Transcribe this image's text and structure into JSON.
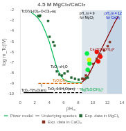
{
  "chart_data": {
    "type": "scatter",
    "title": "4.5 M MgCl₂/CaCl₂",
    "x_label": "pHₘ",
    "y_label": "log m_Tc(IV)",
    "xlim": [
      0,
      14
    ],
    "ylim": [
      -10,
      -2
    ],
    "xticks": [
      0,
      2,
      4,
      6,
      8,
      10,
      12,
      14
    ],
    "yticks": [
      -10,
      -9,
      -8,
      -7,
      -6,
      -5,
      -4,
      -3,
      -2
    ],
    "grid": false,
    "legend": "bottom",
    "spans": [
      {
        "x": [
          8.5,
          12.0
        ],
        "color": "#b8ccd8"
      },
      {
        "x": [
          12.0,
          14.0
        ],
        "color": "#8aabcc"
      }
    ],
    "series": [
      {
        "name": "Pitzer model",
        "type": "line",
        "color": "#00bb55",
        "line_style": "solid",
        "x": [
          1.5,
          2.0,
          2.5,
          3.0,
          3.5,
          4.0,
          4.5,
          5.0,
          5.5,
          6.0,
          6.5,
          7.0,
          7.5,
          8.0,
          8.5
        ],
        "values": [
          -2.2,
          -2.45,
          -2.8,
          -3.3,
          -4.1,
          -5.0,
          -6.2,
          -7.4,
          -8.2,
          -8.65,
          -8.8,
          -8.85,
          -8.88,
          -8.9,
          -8.9
        ]
      },
      {
        "type": "line",
        "color": "#880000",
        "line_style": "solid",
        "x": [
          8.5,
          9.0,
          9.5,
          10.0,
          10.5,
          11.0,
          11.5,
          12.0,
          12.5,
          13.0,
          13.5
        ],
        "values": [
          -8.9,
          -8.6,
          -8.1,
          -7.4,
          -6.7,
          -6.0,
          -5.3,
          -4.6,
          -3.9,
          -3.2,
          -2.6
        ]
      },
      {
        "type": "line",
        "color": "#dd6600",
        "line_style": "dashed",
        "x": [
          2.5,
          8.5
        ],
        "values": [
          -9.0,
          -9.0
        ]
      },
      {
        "name": "Underlying species",
        "type": "line",
        "color": "gray",
        "line_style": "dotted",
        "x": [
          4.5,
          8.5
        ],
        "values": [
          -9.5,
          -9.5
        ]
      },
      {
        "type": "line",
        "color": "black",
        "line_style": "solid",
        "x": [
          0.5,
          4.2
        ],
        "values": [
          -9.88,
          -9.88
        ]
      },
      {
        "type": "line",
        "color": "black",
        "line_style": "dashed",
        "x": [
          4.2,
          8.5
        ],
        "values": [
          -9.88,
          -9.88
        ]
      },
      {
        "name": "Exp. data in MgCl₂",
        "type": "scatter",
        "color": "#226633",
        "marker": "square",
        "x": [
          2.5,
          2.65,
          2.75,
          3.85,
          4.05,
          4.55,
          4.75,
          5.05,
          5.4,
          5.75,
          6.1,
          6.55,
          7.05,
          7.55,
          8.05,
          8.55,
          9.05,
          9.3
        ],
        "values": [
          -2.55,
          -2.6,
          -2.52,
          -3.05,
          -4.55,
          -5.05,
          -5.4,
          -7.85,
          -8.15,
          -8.25,
          -8.05,
          -7.85,
          -8.45,
          -8.55,
          -8.65,
          -8.55,
          -8.5,
          -8.45
        ]
      },
      {
        "name": "Exp. data in CaCl₂",
        "type": "scatter",
        "color": "#883322",
        "marker": "square",
        "x": [
          8.6,
          8.85,
          9.05,
          9.55,
          10.05,
          10.55,
          11.05,
          11.55,
          12.05,
          12.35
        ],
        "values": [
          -8.55,
          -8.6,
          -8.25,
          -7.85,
          -7.15,
          -6.65,
          -6.25,
          -5.85,
          -5.45,
          -5.05
        ]
      },
      {
        "type": "scatter",
        "color": "#00ee44",
        "marker": "circle",
        "x": [
          9.2,
          9.55,
          9.3
        ],
        "values": [
          -6.15,
          -7.1,
          -7.7
        ]
      },
      {
        "type": "scatter",
        "color": "#ddee00",
        "marker": "circle",
        "x": [
          9.5
        ],
        "values": [
          -6.75
        ]
      },
      {
        "type": "scatter",
        "color": "#ee1100",
        "marker": "circle",
        "x": [
          10.55,
          11.05,
          10.75
        ],
        "values": [
          -6.0,
          -6.45,
          -6.9
        ]
      }
    ],
    "annotations": [
      {
        "text": "TcO₂·xH₂O",
        "x": 4.2,
        "y": -7.5,
        "color": "black"
      },
      {
        "text": "TcO(OH)₂",
        "x": 4.5,
        "y": -8.82,
        "color": "#dd6600"
      },
      {
        "text": "Mg[TcO(OH)₄]⁺",
        "x": 8.3,
        "y": -9.72,
        "color": "#00aa44"
      },
      {
        "text": "Ca₂[TcO(OH)₄]²⁺",
        "x": 9.6,
        "y": -5.85,
        "color": "#990000"
      },
      {
        "text": "pH_m = 9\nfor MgCl₂",
        "x": 9.2,
        "y": -2.2,
        "color": "black"
      },
      {
        "text": "pH_m = 12\nfor CaCl₂",
        "x": 12.8,
        "y": -2.2,
        "color": "#0000cc"
      },
      {
        "text": "TcO(V)-(O)₂-O-(O)₂-aq",
        "x": 0.15,
        "y": -2.25,
        "color": "black"
      },
      {
        "text": "TcO₂·½H₂O(am)",
        "x": 0.15,
        "y": -9.78,
        "color": "black"
      },
      {
        "text": "TcO₂·0.6H₂O(am)",
        "x": 3.8,
        "y": -9.62,
        "color": "black"
      },
      {
        "text": "?",
        "x": 2.8,
        "y": -9.35,
        "color": "black"
      }
    ]
  }
}
